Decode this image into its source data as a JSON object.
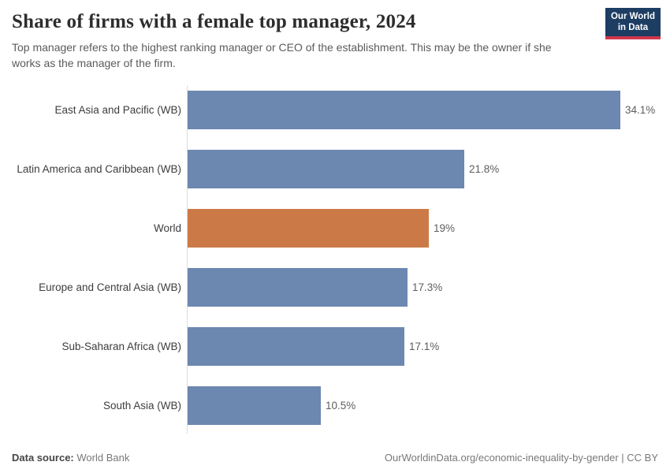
{
  "header": {
    "title": "Share of firms with a female top manager, 2024",
    "subtitle": "Top manager refers to the highest ranking manager or CEO of the establishment. This may be the owner if she works as the manager of the firm.",
    "logo": {
      "line1": "Our World",
      "line2": "in Data"
    }
  },
  "chart_data": {
    "type": "bar",
    "orientation": "horizontal",
    "title": "Share of firms with a female top manager, 2024",
    "categories": [
      "East Asia and Pacific (WB)",
      "Latin America and Caribbean (WB)",
      "World",
      "Europe and Central Asia (WB)",
      "Sub-Saharan Africa (WB)",
      "South Asia (WB)"
    ],
    "values": [
      34.1,
      21.8,
      19,
      17.3,
      17.1,
      10.5
    ],
    "value_labels": [
      "34.1%",
      "21.8%",
      "19%",
      "17.3%",
      "17.1%",
      "10.5%"
    ],
    "unit": "%",
    "xlim": [
      0,
      38
    ],
    "grid": false,
    "legend": "none",
    "highlight_category": "World",
    "bar_colors": [
      "#6c87b0",
      "#6c87b0",
      "#cb7a47",
      "#6c87b0",
      "#6c87b0",
      "#6c87b0"
    ],
    "colors": {
      "default_bar": "#6c87b0",
      "highlight_bar": "#cb7a47",
      "axis_line": "#dddddd",
      "logo_navy": "#1d3d63",
      "logo_red": "#d0374b"
    }
  },
  "footer": {
    "datasource_label": "Data source:",
    "datasource_value": "World Bank",
    "url_text": "OurWorldinData.org/economic-inequality-by-gender | CC BY"
  }
}
